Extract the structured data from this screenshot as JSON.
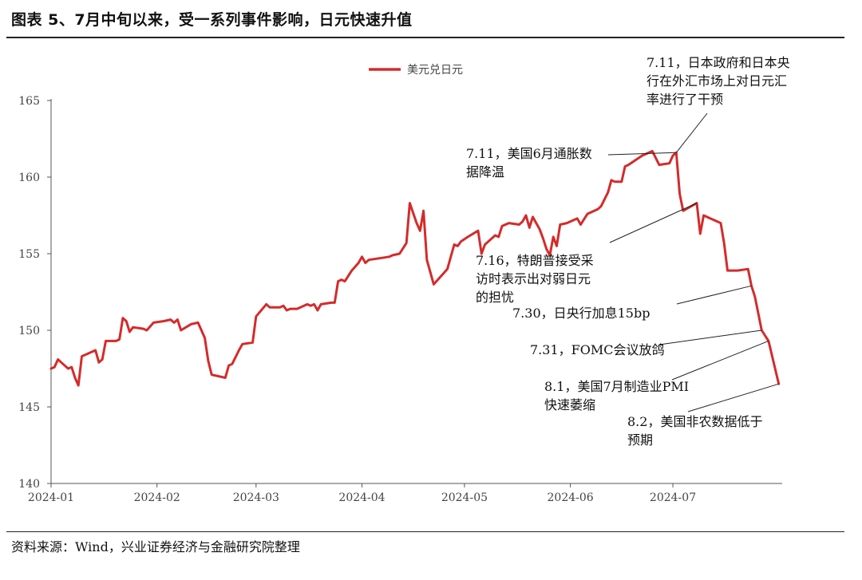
{
  "header": {
    "title": "图表 5、7月中旬以来，受一系列事件影响，日元快速升值"
  },
  "footer": {
    "source": "资料来源：Wind，兴业证券经济与金融研究院整理"
  },
  "colors": {
    "series": "#d42b2b",
    "axis": "#555555",
    "annotation_line": "#222222"
  },
  "chart_data": {
    "type": "line",
    "title": "",
    "xlabel": "",
    "ylabel": "",
    "ylim": [
      140,
      165
    ],
    "yticks": [
      140,
      145,
      150,
      155,
      160,
      165
    ],
    "xlim": [
      "2024-01-01",
      "2024-08-02"
    ],
    "xticks": [
      "2024-01",
      "2024-02",
      "2024-03",
      "2024-04",
      "2024-05",
      "2024-06",
      "2024-07"
    ],
    "grid": false,
    "legend_position": "top-center",
    "series": [
      {
        "name": "美元兑日元",
        "color": "#d42b2b",
        "points": [
          [
            "2024-01-01",
            147.5
          ],
          [
            "2024-01-02",
            147.6
          ],
          [
            "2024-01-03",
            148.1
          ],
          [
            "2024-01-04",
            147.9
          ],
          [
            "2024-01-05",
            147.7
          ],
          [
            "2024-01-06",
            147.5
          ],
          [
            "2024-01-07",
            147.6
          ],
          [
            "2024-01-08",
            146.9
          ],
          [
            "2024-01-09",
            146.4
          ],
          [
            "2024-01-10",
            148.3
          ],
          [
            "2024-01-11",
            148.4
          ],
          [
            "2024-01-13",
            148.6
          ],
          [
            "2024-01-14",
            148.7
          ],
          [
            "2024-01-15",
            147.9
          ],
          [
            "2024-01-16",
            148.1
          ],
          [
            "2024-01-17",
            149.3
          ],
          [
            "2024-01-20",
            149.3
          ],
          [
            "2024-01-21",
            149.4
          ],
          [
            "2024-01-22",
            150.8
          ],
          [
            "2024-01-23",
            150.6
          ],
          [
            "2024-01-24",
            149.9
          ],
          [
            "2024-01-25",
            150.2
          ],
          [
            "2024-01-28",
            150.1
          ],
          [
            "2024-01-29",
            150.0
          ],
          [
            "2024-01-31",
            150.5
          ],
          [
            "2024-02-03",
            150.6
          ],
          [
            "2024-02-05",
            150.7
          ],
          [
            "2024-02-06",
            150.5
          ],
          [
            "2024-02-07",
            150.7
          ],
          [
            "2024-02-08",
            150.0
          ],
          [
            "2024-02-11",
            150.4
          ],
          [
            "2024-02-13",
            150.5
          ],
          [
            "2024-02-15",
            149.5
          ],
          [
            "2024-02-16",
            148.0
          ],
          [
            "2024-02-17",
            147.1
          ],
          [
            "2024-02-21",
            146.9
          ],
          [
            "2024-02-22",
            147.7
          ],
          [
            "2024-02-23",
            147.8
          ],
          [
            "2024-02-25",
            148.7
          ],
          [
            "2024-02-26",
            149.1
          ],
          [
            "2024-02-29",
            149.2
          ],
          [
            "2024-03-01",
            150.9
          ],
          [
            "2024-03-04",
            151.7
          ],
          [
            "2024-03-05",
            151.5
          ],
          [
            "2024-03-08",
            151.5
          ],
          [
            "2024-03-09",
            151.6
          ],
          [
            "2024-03-10",
            151.3
          ],
          [
            "2024-03-11",
            151.4
          ],
          [
            "2024-03-13",
            151.4
          ],
          [
            "2024-03-16",
            151.7
          ],
          [
            "2024-03-17",
            151.6
          ],
          [
            "2024-03-18",
            151.7
          ],
          [
            "2024-03-19",
            151.3
          ],
          [
            "2024-03-20",
            151.7
          ],
          [
            "2024-03-23",
            151.8
          ],
          [
            "2024-03-24",
            151.8
          ],
          [
            "2024-03-25",
            153.2
          ],
          [
            "2024-03-26",
            153.3
          ],
          [
            "2024-03-27",
            153.2
          ],
          [
            "2024-03-29",
            153.9
          ],
          [
            "2024-03-31",
            154.4
          ],
          [
            "2024-04-01",
            154.8
          ],
          [
            "2024-04-02",
            154.4
          ],
          [
            "2024-04-03",
            154.6
          ],
          [
            "2024-04-06",
            154.7
          ],
          [
            "2024-04-09",
            154.8
          ],
          [
            "2024-04-10",
            154.9
          ],
          [
            "2024-04-12",
            155.0
          ],
          [
            "2024-04-14",
            155.7
          ],
          [
            "2024-04-15",
            158.3
          ],
          [
            "2024-04-17",
            157.0
          ],
          [
            "2024-04-18",
            156.5
          ],
          [
            "2024-04-19",
            157.8
          ],
          [
            "2024-04-20",
            154.6
          ],
          [
            "2024-04-22",
            153.0
          ],
          [
            "2024-04-26",
            154.0
          ],
          [
            "2024-04-28",
            155.6
          ],
          [
            "2024-04-29",
            155.5
          ],
          [
            "2024-04-30",
            155.8
          ],
          [
            "2024-05-02",
            156.1
          ],
          [
            "2024-05-05",
            156.5
          ],
          [
            "2024-05-06",
            155.0
          ],
          [
            "2024-05-07",
            155.6
          ],
          [
            "2024-05-10",
            156.2
          ],
          [
            "2024-05-11",
            156.1
          ],
          [
            "2024-05-12",
            156.8
          ],
          [
            "2024-05-14",
            157.0
          ],
          [
            "2024-05-17",
            156.9
          ],
          [
            "2024-05-18",
            157.1
          ],
          [
            "2024-05-19",
            157.5
          ],
          [
            "2024-05-20",
            156.7
          ],
          [
            "2024-05-21",
            157.4
          ],
          [
            "2024-05-23",
            156.6
          ],
          [
            "2024-05-24",
            156.0
          ],
          [
            "2024-05-25",
            155.3
          ],
          [
            "2024-05-26",
            154.9
          ],
          [
            "2024-05-27",
            156.1
          ],
          [
            "2024-05-28",
            155.5
          ],
          [
            "2024-05-29",
            156.9
          ],
          [
            "2024-05-31",
            157.0
          ],
          [
            "2024-06-02",
            157.2
          ],
          [
            "2024-06-03",
            157.3
          ],
          [
            "2024-06-04",
            156.9
          ],
          [
            "2024-06-06",
            157.6
          ],
          [
            "2024-06-09",
            157.9
          ],
          [
            "2024-06-10",
            158.1
          ],
          [
            "2024-06-12",
            159.0
          ],
          [
            "2024-06-13",
            159.8
          ],
          [
            "2024-06-14",
            159.7
          ],
          [
            "2024-06-16",
            159.7
          ],
          [
            "2024-06-17",
            160.7
          ],
          [
            "2024-06-18",
            160.8
          ],
          [
            "2024-06-20",
            161.1
          ],
          [
            "2024-06-22",
            161.4
          ],
          [
            "2024-06-25",
            161.7
          ],
          [
            "2024-06-27",
            160.8
          ],
          [
            "2024-06-30",
            160.9
          ],
          [
            "2024-07-01",
            161.4
          ],
          [
            "2024-07-02",
            161.6
          ],
          [
            "2024-07-03",
            158.9
          ],
          [
            "2024-07-04",
            157.8
          ],
          [
            "2024-07-08",
            158.3
          ],
          [
            "2024-07-09",
            156.3
          ],
          [
            "2024-07-10",
            157.5
          ],
          [
            "2024-07-13",
            157.2
          ],
          [
            "2024-07-15",
            157.0
          ],
          [
            "2024-07-16",
            155.7
          ],
          [
            "2024-07-17",
            153.9
          ],
          [
            "2024-07-19",
            153.9
          ],
          [
            "2024-07-20",
            153.9
          ],
          [
            "2024-07-23",
            154.0
          ],
          [
            "2024-07-24",
            152.9
          ],
          [
            "2024-07-25",
            152.2
          ],
          [
            "2024-07-27",
            150.0
          ],
          [
            "2024-07-29",
            149.3
          ],
          [
            "2024-08-01",
            146.5
          ]
        ]
      }
    ],
    "annotations": [
      {
        "date": "2024-07-02",
        "value": 161.6,
        "text": [
          "7.11，日本政府和日本央",
          "行在外汇市场上对日元汇",
          "率进行了干预"
        ]
      },
      {
        "date": "2024-07-02",
        "value": 161.6,
        "text": [
          "7.11，美国6月通胀数",
          "据降温"
        ]
      },
      {
        "date": "2024-07-08",
        "value": 158.3,
        "text": [
          "7.16，特朗普接受采",
          "访时表示出对弱日元",
          "的担忧"
        ]
      },
      {
        "date": "2024-07-24",
        "value": 152.9,
        "text": [
          "7.30，日央行加息15bp"
        ]
      },
      {
        "date": "2024-07-27",
        "value": 150.0,
        "text": [
          "7.31，FOMC会议放鸽"
        ]
      },
      {
        "date": "2024-07-29",
        "value": 149.3,
        "text": [
          "8.1，美国7月制造业PMI",
          "快速萎缩"
        ]
      },
      {
        "date": "2024-08-01",
        "value": 146.5,
        "text": [
          "8.2，美国非农数据低于",
          "预期"
        ]
      }
    ]
  }
}
